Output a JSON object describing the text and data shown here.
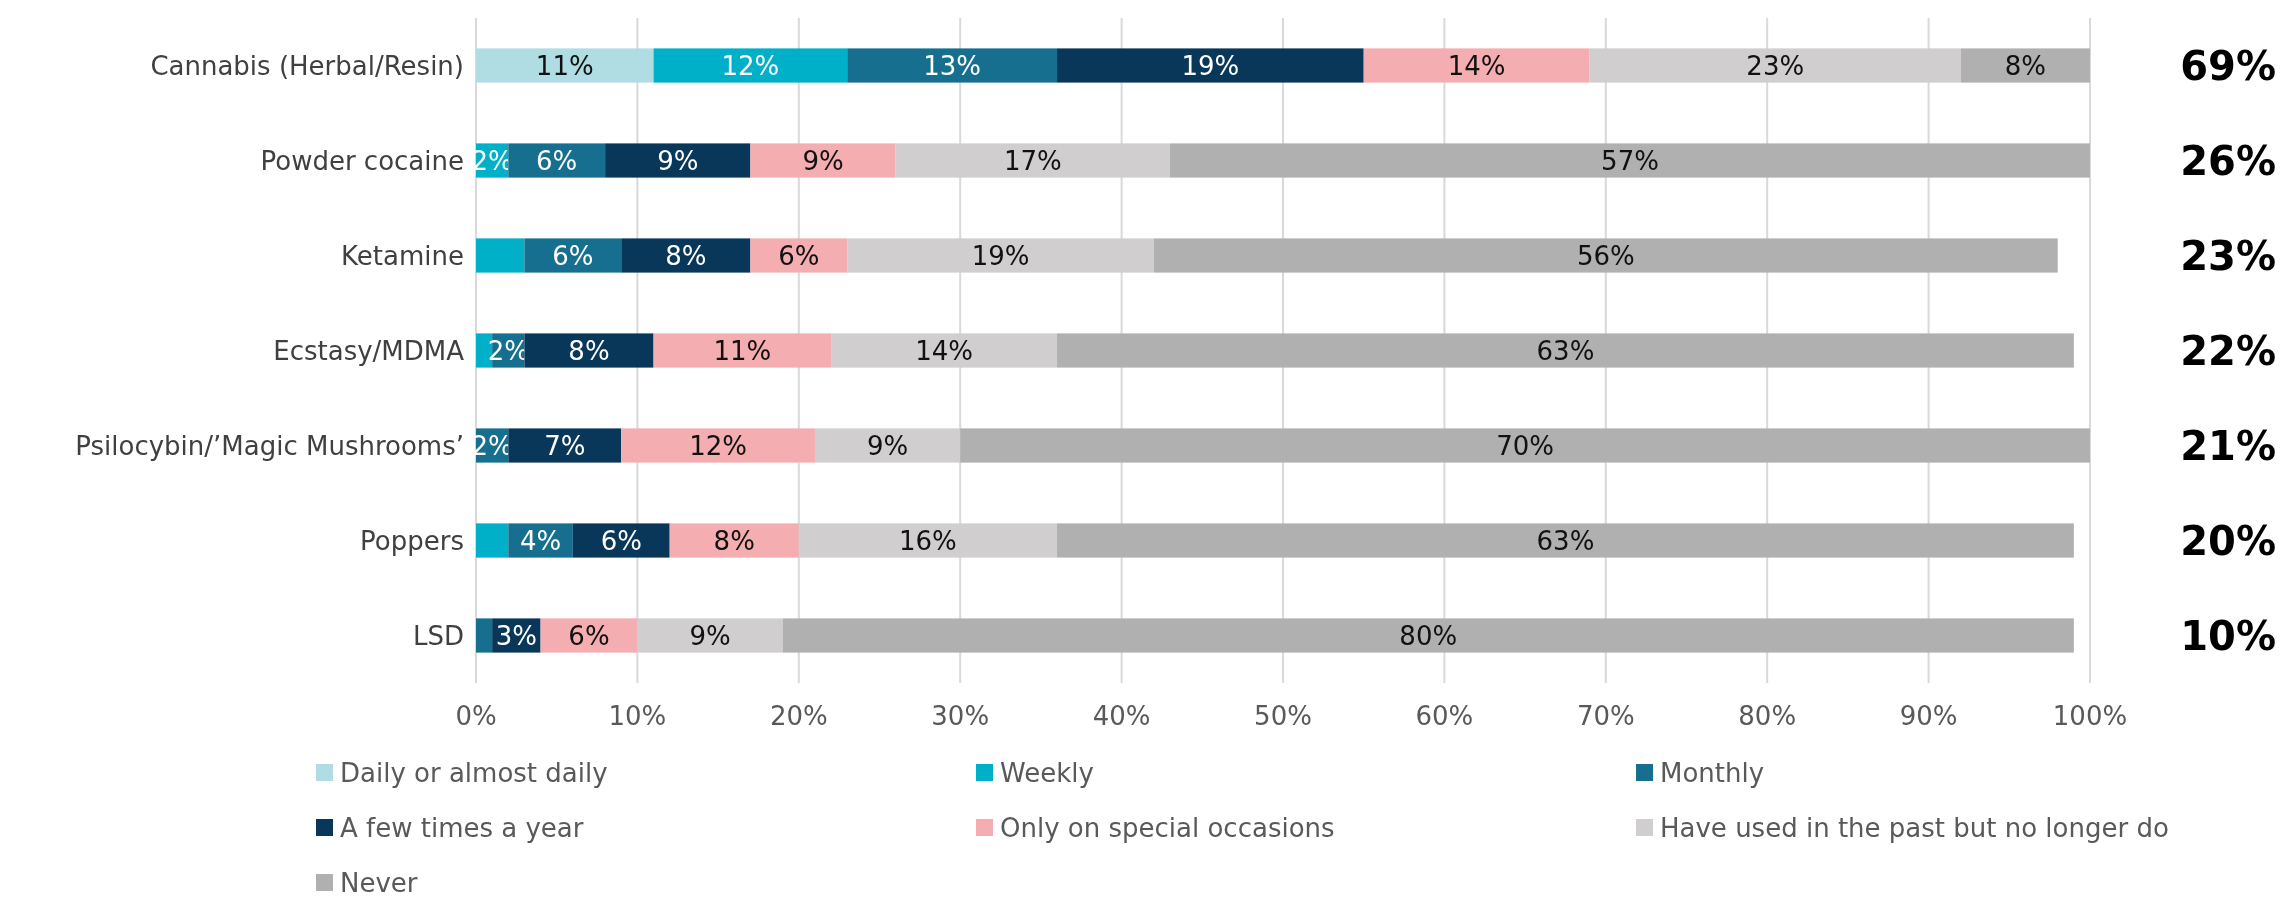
{
  "chart_data": {
    "type": "bar",
    "orientation": "horizontal",
    "stacked": true,
    "categories": [
      "Cannabis (Herbal/Resin)",
      "Powder cocaine",
      "Ketamine",
      "Ecstasy/MDMA",
      "Psilocybin/’Magic Mushrooms’",
      "Poppers",
      "LSD"
    ],
    "series": [
      {
        "name": "Daily or almost daily",
        "color": "#b0dde4",
        "values": [
          11,
          0,
          0,
          0,
          0,
          0,
          0
        ],
        "value_labels": [
          "11%",
          null,
          null,
          null,
          null,
          null,
          null
        ]
      },
      {
        "name": "Weekly",
        "color": "#00afc8",
        "values": [
          12,
          2,
          3,
          1,
          0,
          2,
          0
        ],
        "value_labels": [
          "12%",
          "2%",
          null,
          null,
          null,
          null,
          null
        ]
      },
      {
        "name": "Monthly",
        "color": "#176f8f",
        "values": [
          13,
          6,
          6,
          2,
          2,
          4,
          1
        ],
        "value_labels": [
          "13%",
          "6%",
          "6%",
          "2%",
          "2%",
          "4%",
          null
        ]
      },
      {
        "name": "A few times a year",
        "color": "#08375a",
        "values": [
          19,
          9,
          8,
          8,
          7,
          6,
          3
        ],
        "value_labels": [
          "19%",
          "9%",
          "8%",
          "8%",
          "7%",
          "6%",
          "3%"
        ]
      },
      {
        "name": "Only on special occasions",
        "color": "#f4adb0",
        "values": [
          14,
          9,
          6,
          11,
          12,
          8,
          6
        ],
        "value_labels": [
          "14%",
          "9%",
          "6%",
          "11%",
          "12%",
          "8%",
          "6%"
        ]
      },
      {
        "name": "Have used in the past but no longer do",
        "color": "#d0cecf",
        "values": [
          23,
          17,
          19,
          14,
          9,
          16,
          9
        ],
        "value_labels": [
          "23%",
          "17%",
          "19%",
          "14%",
          "9%",
          "16%",
          "9%"
        ]
      },
      {
        "name": "Never",
        "color": "#b0b0b0",
        "values": [
          8,
          57,
          56,
          63,
          70,
          63,
          80
        ],
        "value_labels": [
          "8%",
          "57%",
          "56%",
          "63%",
          "70%",
          "63%",
          "80%"
        ]
      }
    ],
    "xlim": [
      0,
      100
    ],
    "xticks": [
      {
        "value": 0,
        "label": "0%"
      },
      {
        "value": 10,
        "label": "10%"
      },
      {
        "value": 20,
        "label": "20%"
      },
      {
        "value": 30,
        "label": "30%"
      },
      {
        "value": 40,
        "label": "40%"
      },
      {
        "value": 50,
        "label": "50%"
      },
      {
        "value": 60,
        "label": "60%"
      },
      {
        "value": 70,
        "label": "70%"
      },
      {
        "value": 80,
        "label": "80%"
      },
      {
        "value": 90,
        "label": "90%"
      },
      {
        "value": 100,
        "label": "100%"
      }
    ],
    "grid": "x",
    "legend": "bottom",
    "annotations": [
      "69%",
      "26%",
      "23%",
      "22%",
      "21%",
      "20%",
      "10%"
    ]
  }
}
